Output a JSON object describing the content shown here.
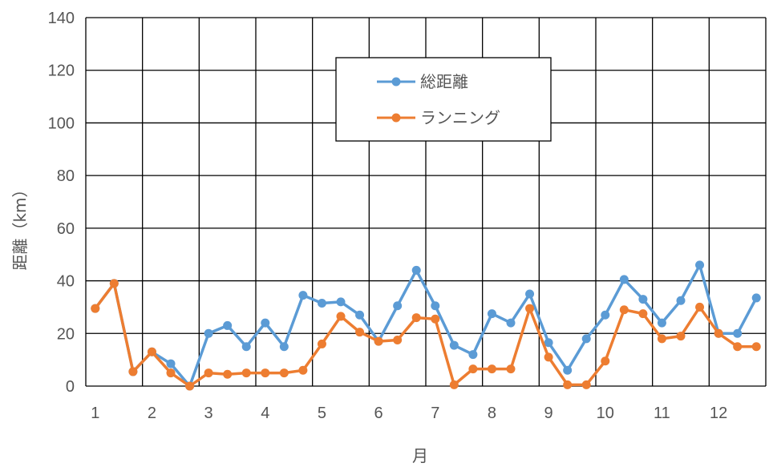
{
  "chart_data": {
    "type": "line",
    "xlabel": "月",
    "ylabel": "距離（km）",
    "ylim": [
      0,
      140
    ],
    "yticks": [
      0,
      20,
      40,
      60,
      80,
      100,
      120,
      140
    ],
    "x_tick_labels": [
      "1",
      "2",
      "3",
      "4",
      "5",
      "6",
      "7",
      "8",
      "9",
      "10",
      "11",
      "12"
    ],
    "points_per_month": 3,
    "grid": true,
    "legend_position": "top-center",
    "series": [
      {
        "name": "総距離",
        "color": "#5b9bd5",
        "values": [
          29.5,
          39,
          5.5,
          13,
          8.5,
          0,
          20,
          23,
          15,
          24,
          15,
          34.5,
          31.5,
          32,
          27,
          17,
          30.5,
          44,
          30.5,
          15.5,
          12,
          27.5,
          24,
          35,
          16.5,
          6,
          18,
          27,
          40.5,
          33,
          24,
          32.5,
          46,
          20,
          20,
          33.5
        ]
      },
      {
        "name": "ランニング",
        "color": "#ed7d31",
        "values": [
          29.5,
          39,
          5.5,
          13,
          5,
          0,
          5,
          4.5,
          5,
          5,
          5,
          6,
          16,
          26.5,
          20.5,
          17,
          17.5,
          26,
          25.5,
          0.5,
          6.5,
          6.5,
          6.5,
          29.5,
          11,
          0.5,
          0.5,
          9.5,
          29,
          27.5,
          18,
          19,
          30,
          20,
          15,
          15
        ]
      }
    ]
  }
}
